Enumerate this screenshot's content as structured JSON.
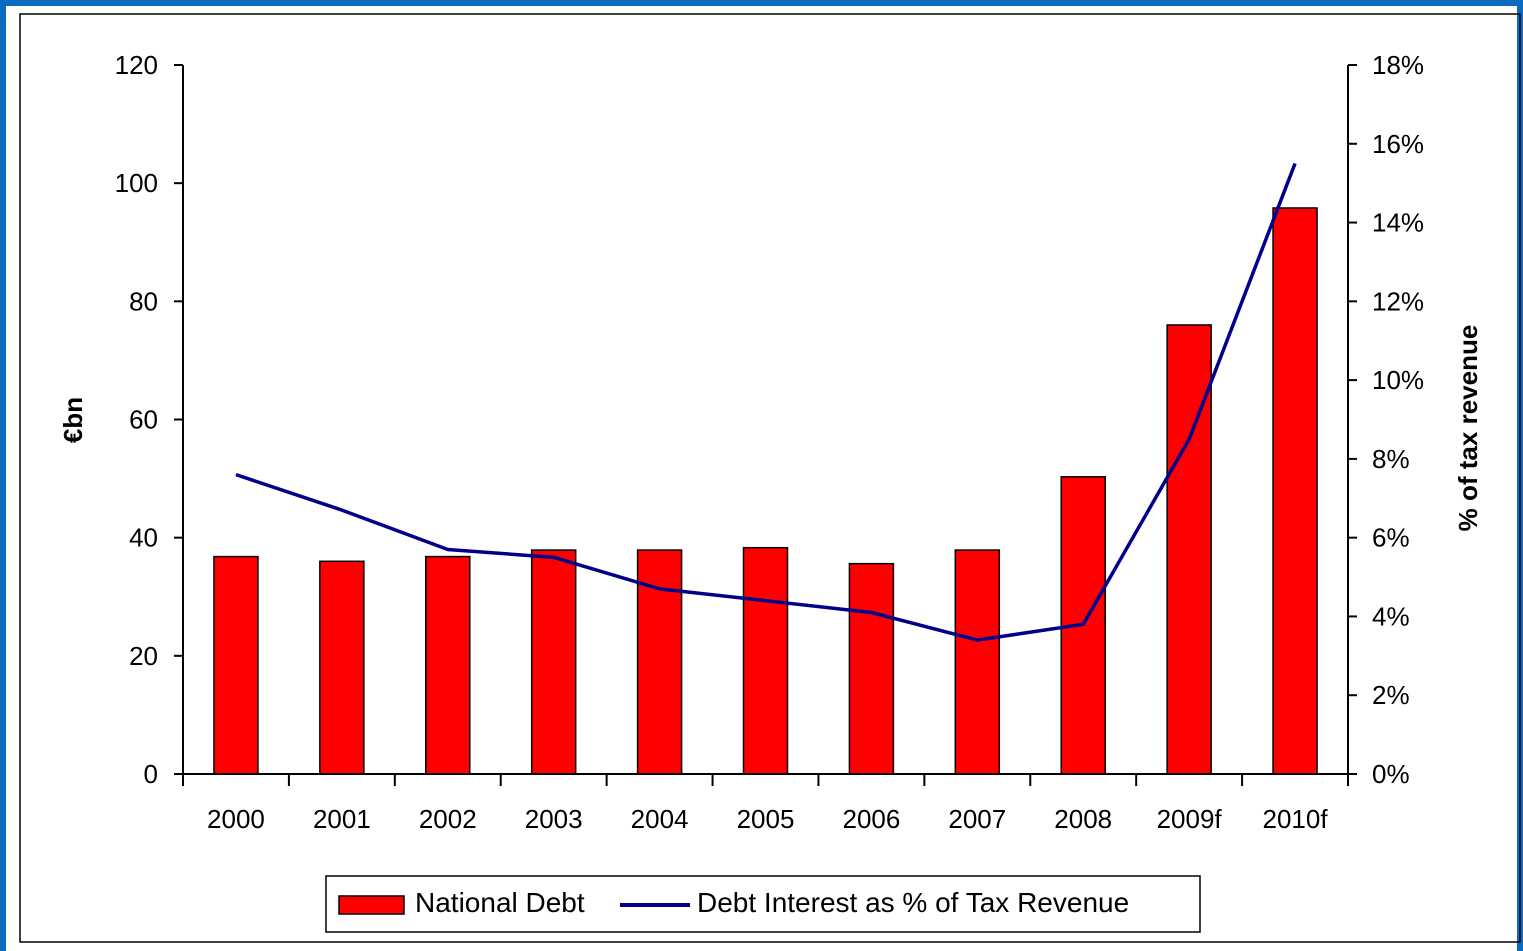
{
  "chart_data": {
    "type": "bar",
    "categories": [
      "2000",
      "2001",
      "2002",
      "2003",
      "2004",
      "2005",
      "2006",
      "2007",
      "2008",
      "2009f",
      "2010f"
    ],
    "series": [
      {
        "name": "National Debt",
        "type": "bar",
        "axis": "left",
        "color": "#ff0000",
        "values": [
          36.8,
          36.0,
          36.8,
          37.9,
          37.9,
          38.3,
          35.6,
          37.9,
          50.3,
          76.0,
          95.8
        ]
      },
      {
        "name": "Debt Interest as % of Tax Revenue",
        "type": "line",
        "axis": "right",
        "color": "#00008b",
        "values": [
          7.6,
          6.7,
          5.7,
          5.5,
          4.7,
          4.4,
          4.1,
          3.4,
          3.8,
          8.5,
          15.5
        ]
      }
    ],
    "ylabel": "€bn",
    "y2label": "% of tax revenue",
    "ylim": [
      0,
      120
    ],
    "y2lim": [
      0,
      18
    ],
    "yticks": [
      "0",
      "20",
      "40",
      "60",
      "80",
      "100",
      "120"
    ],
    "y2ticks": [
      "0%",
      "2%",
      "4%",
      "6%",
      "8%",
      "10%",
      "12%",
      "14%",
      "16%",
      "18%"
    ],
    "grid": false,
    "legend_position": "bottom"
  }
}
